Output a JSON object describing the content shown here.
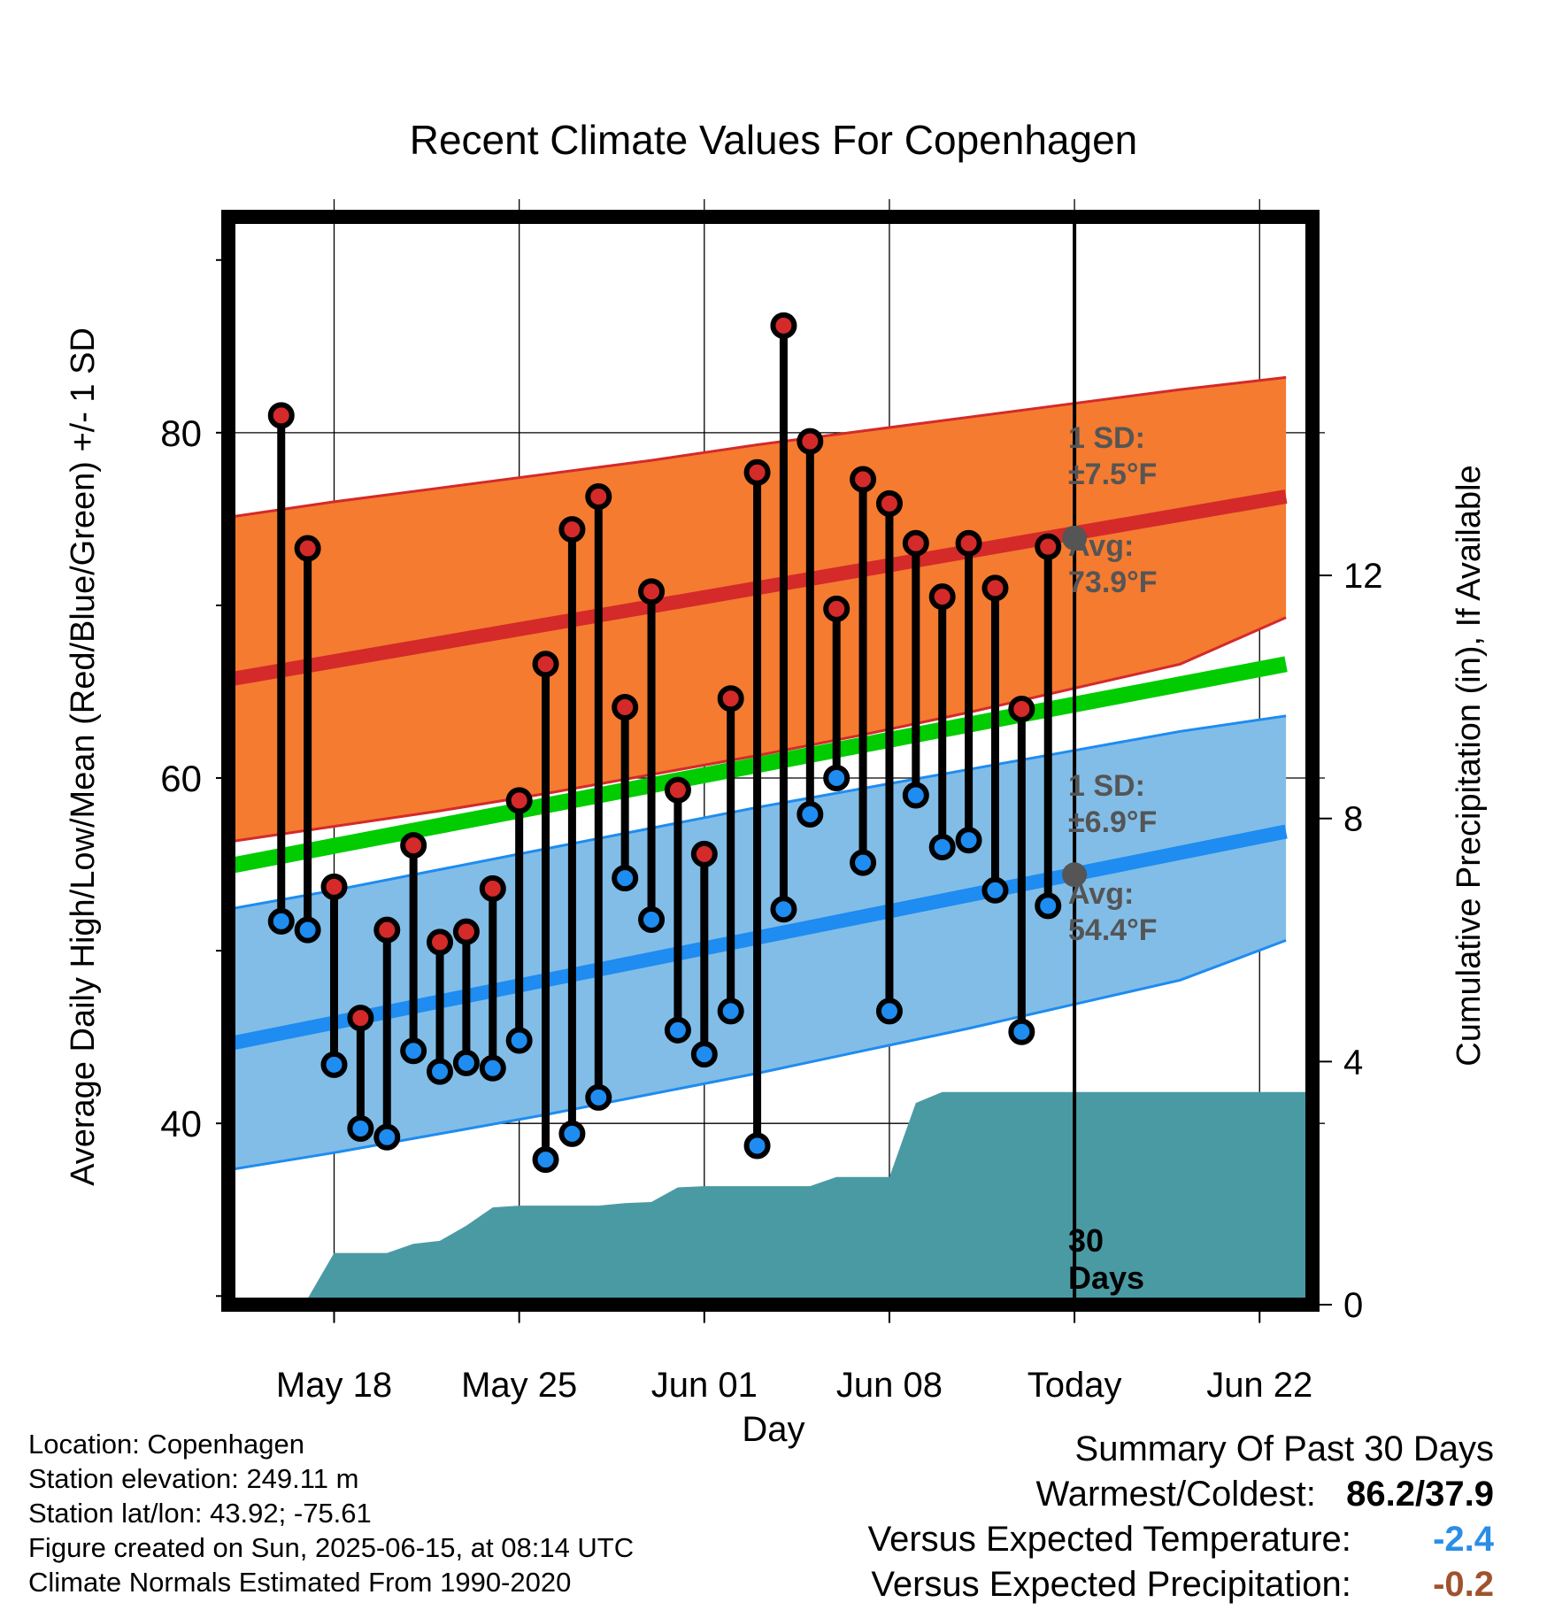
{
  "chart_data": {
    "type": "line",
    "title": "Recent Climate Values For Copenhagen",
    "xlabel": "Day",
    "ylabel": "Average Daily High/Low/Mean (Red/Blue/Green) +/- 1 SD",
    "y2label": "Cumulative Precipitation (in), If Available",
    "ylim": [
      29.5,
      92.5
    ],
    "y2lim": [
      0,
      17.9
    ],
    "yticks": [
      "40",
      "60",
      "80"
    ],
    "y2ticks": [
      "0",
      "4",
      "8",
      "12"
    ],
    "x_days": [
      "2025-05-16",
      "2025-05-17",
      "2025-05-18",
      "2025-05-19",
      "2025-05-20",
      "2025-05-21",
      "2025-05-22",
      "2025-05-23",
      "2025-05-24",
      "2025-05-25",
      "2025-05-26",
      "2025-05-27",
      "2025-05-28",
      "2025-05-29",
      "2025-05-30",
      "2025-05-31",
      "2025-06-01",
      "2025-06-02",
      "2025-06-03",
      "2025-06-04",
      "2025-06-05",
      "2025-06-06",
      "2025-06-07",
      "2025-06-08",
      "2025-06-09",
      "2025-06-10",
      "2025-06-11",
      "2025-06-12",
      "2025-06-13",
      "2025-06-14"
    ],
    "xlim": [
      "2025-05-14",
      "2025-06-24"
    ],
    "xticks": [
      {
        "date": "2025-05-18",
        "label": "May 18"
      },
      {
        "date": "2025-05-25",
        "label": "May 25"
      },
      {
        "date": "2025-06-01",
        "label": "Jun 01"
      },
      {
        "date": "2025-06-08",
        "label": "Jun 08"
      },
      {
        "date": "2025-06-15",
        "label": "Today"
      },
      {
        "date": "2025-06-22",
        "label": "Jun 22"
      }
    ],
    "series": [
      {
        "name": "High",
        "values": [
          81.0,
          73.3,
          53.7,
          46.1,
          51.2,
          56.1,
          50.5,
          51.1,
          53.6,
          58.7,
          66.6,
          74.4,
          76.3,
          64.1,
          70.8,
          59.3,
          55.6,
          64.6,
          77.7,
          86.2,
          79.5,
          69.8,
          77.3,
          75.9,
          73.6,
          70.5,
          73.6,
          71.0,
          64.0,
          73.4
        ]
      },
      {
        "name": "Low",
        "values": [
          51.7,
          51.2,
          43.4,
          39.7,
          39.2,
          44.2,
          43.0,
          43.5,
          43.2,
          44.8,
          37.9,
          39.4,
          41.5,
          54.2,
          51.8,
          45.4,
          44.0,
          46.5,
          38.7,
          52.4,
          57.9,
          60.0,
          55.1,
          46.5,
          59.0,
          56.0,
          56.4,
          53.5,
          45.3,
          52.6
        ]
      }
    ],
    "normals": {
      "avg_high": [
        [
          0,
          65.7
        ],
        [
          40,
          76.3
        ]
      ],
      "avg_high_sd_upper": [
        [
          0,
          75.1
        ],
        [
          4,
          76.0
        ],
        [
          8,
          76.8
        ],
        [
          12,
          77.6
        ],
        [
          16,
          78.4
        ],
        [
          20,
          79.3
        ],
        [
          24,
          80.1
        ],
        [
          28,
          80.9
        ],
        [
          32,
          81.7
        ],
        [
          36,
          82.5
        ],
        [
          40,
          83.2
        ]
      ],
      "avg_high_sd_lower": [
        [
          0,
          56.3
        ],
        [
          4,
          57.2
        ],
        [
          8,
          58.1
        ],
        [
          12,
          59.1
        ],
        [
          16,
          60.2
        ],
        [
          20,
          61.3
        ],
        [
          24,
          62.5
        ],
        [
          28,
          63.8
        ],
        [
          32,
          65.2
        ],
        [
          36,
          66.6
        ],
        [
          40,
          69.3
        ]
      ],
      "avg_mean": [
        [
          0,
          54.9
        ],
        [
          40,
          66.6
        ]
      ],
      "avg_low": [
        [
          0,
          44.6
        ],
        [
          40,
          56.9
        ]
      ],
      "avg_low_sd_upper": [
        [
          0,
          52.4
        ],
        [
          4,
          53.5
        ],
        [
          8,
          54.7
        ],
        [
          12,
          55.9
        ],
        [
          16,
          57.1
        ],
        [
          20,
          58.3
        ],
        [
          24,
          59.4
        ],
        [
          28,
          60.5
        ],
        [
          32,
          61.6
        ],
        [
          36,
          62.7
        ],
        [
          40,
          63.6
        ]
      ],
      "avg_low_sd_lower": [
        [
          0,
          37.3
        ],
        [
          4,
          38.3
        ],
        [
          8,
          39.4
        ],
        [
          12,
          40.5
        ],
        [
          16,
          41.7
        ],
        [
          20,
          42.9
        ],
        [
          24,
          44.2
        ],
        [
          28,
          45.5
        ],
        [
          32,
          46.9
        ],
        [
          36,
          48.3
        ],
        [
          40,
          50.6
        ]
      ]
    },
    "precip_cumulative": [
      {
        "date": "2025-05-16",
        "value": 0.0
      },
      {
        "date": "2025-05-17",
        "value": 0.1
      },
      {
        "date": "2025-05-18",
        "value": 0.85
      },
      {
        "date": "2025-05-19",
        "value": 0.85
      },
      {
        "date": "2025-05-20",
        "value": 0.85
      },
      {
        "date": "2025-05-21",
        "value": 1.0
      },
      {
        "date": "2025-05-22",
        "value": 1.05
      },
      {
        "date": "2025-05-23",
        "value": 1.3
      },
      {
        "date": "2025-05-24",
        "value": 1.6
      },
      {
        "date": "2025-05-25",
        "value": 1.63
      },
      {
        "date": "2025-05-26",
        "value": 1.63
      },
      {
        "date": "2025-05-27",
        "value": 1.63
      },
      {
        "date": "2025-05-28",
        "value": 1.63
      },
      {
        "date": "2025-05-29",
        "value": 1.67
      },
      {
        "date": "2025-05-30",
        "value": 1.69
      },
      {
        "date": "2025-05-31",
        "value": 1.93
      },
      {
        "date": "2025-06-01",
        "value": 1.95
      },
      {
        "date": "2025-06-02",
        "value": 1.95
      },
      {
        "date": "2025-06-03",
        "value": 1.95
      },
      {
        "date": "2025-06-04",
        "value": 1.95
      },
      {
        "date": "2025-06-05",
        "value": 1.95
      },
      {
        "date": "2025-06-06",
        "value": 2.1
      },
      {
        "date": "2025-06-07",
        "value": 2.1
      },
      {
        "date": "2025-06-08",
        "value": 2.1
      },
      {
        "date": "2025-06-09",
        "value": 3.32
      },
      {
        "date": "2025-06-10",
        "value": 3.5
      },
      {
        "date": "2025-06-11",
        "value": 3.5
      },
      {
        "date": "2025-06-12",
        "value": 3.5
      },
      {
        "date": "2025-06-13",
        "value": 3.5
      },
      {
        "date": "2025-06-14",
        "value": 3.5
      },
      {
        "date": "2025-06-15",
        "value": 3.5
      },
      {
        "date": "2025-06-24",
        "value": 3.5
      }
    ],
    "annotations": {
      "high_sd": "1 SD:",
      "high_sd_value": "±7.5°F",
      "high_avg": "Avg:",
      "high_avg_value": "73.9°F",
      "low_sd": "1 SD:",
      "low_sd_value": "±6.9°F",
      "low_avg": "Avg:",
      "low_avg_value": "54.4°F",
      "days_num": "30",
      "days_word": "Days"
    },
    "today_avg_high": 73.9,
    "today_avg_low": 54.4,
    "colors": {
      "high_band": "#f47b30",
      "high_line": "#d42a2a",
      "mean_line": "#00cc00",
      "low_band": "#82bde7",
      "low_line": "#1e8cf0",
      "precip": "#4a9aa4",
      "high_marker": "#d42a2a",
      "low_marker": "#1e8cf0",
      "annotation": "#555555"
    },
    "grid": true
  },
  "footer": {
    "location": "Location: Copenhagen",
    "elevation": "Station elevation: 249.11 m",
    "latlon": "Station lat/lon: 43.92; -75.61",
    "created": "Figure created on Sun, 2025-06-15, at 08:14 UTC",
    "normals": "Climate Normals Estimated From 1990-2020"
  },
  "summary": {
    "heading": "Summary Of Past 30 Days",
    "warm_cold_label": "Warmest/Coldest:",
    "warm_cold_value": "86.2/37.9",
    "temp_label": "Versus Expected Temperature:",
    "temp_value": "-2.4",
    "temp_color": "#2a8ee8",
    "precip_label": "Versus Expected Precipitation:",
    "precip_value": "-0.2",
    "precip_color": "#a0522d"
  }
}
